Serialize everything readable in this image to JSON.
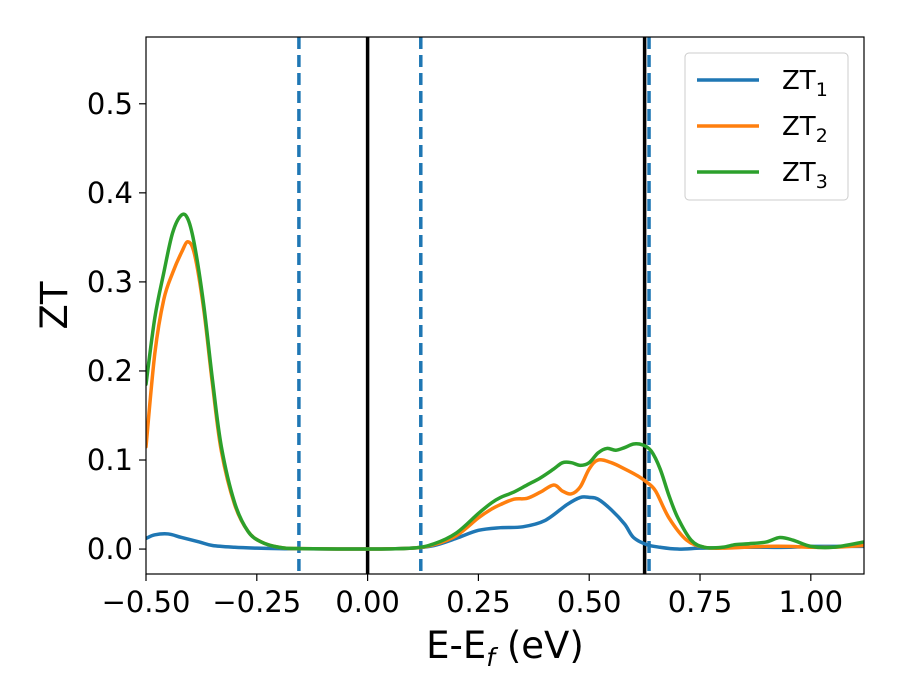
{
  "chart_data": {
    "type": "line",
    "xlabel": "E-E",
    "xlabel_sub": "f",
    "xlabel_unit": " (eV)",
    "ylabel": "ZT",
    "xlim": [
      -0.5,
      1.12
    ],
    "ylim": [
      -0.028,
      0.575
    ],
    "xticks": [
      -0.5,
      -0.25,
      0.0,
      0.25,
      0.5,
      0.75,
      1.0
    ],
    "xtick_labels": [
      "−0.50",
      "−0.25",
      "0.00",
      "0.25",
      "0.50",
      "0.75",
      "1.00"
    ],
    "yticks": [
      0.0,
      0.1,
      0.2,
      0.3,
      0.4,
      0.5
    ],
    "ytick_labels": [
      "0.0",
      "0.1",
      "0.2",
      "0.3",
      "0.4",
      "0.5"
    ],
    "grid": false,
    "legend_position": "top-right",
    "series": [
      {
        "name": "ZT",
        "sub": "1",
        "color": "#1f77b4",
        "x": [
          -0.5,
          -0.48,
          -0.45,
          -0.42,
          -0.38,
          -0.35,
          -0.3,
          -0.25,
          -0.2,
          -0.15,
          0.0,
          0.1,
          0.15,
          0.2,
          0.25,
          0.3,
          0.35,
          0.4,
          0.45,
          0.48,
          0.5,
          0.52,
          0.55,
          0.58,
          0.6,
          0.63,
          0.66,
          0.7,
          0.75,
          0.8,
          0.85,
          0.9,
          0.95,
          1.0,
          1.05,
          1.12
        ],
        "y": [
          0.012,
          0.016,
          0.017,
          0.013,
          0.008,
          0.004,
          0.002,
          0.001,
          0.0005,
          0.0003,
          0.0,
          0.001,
          0.004,
          0.012,
          0.021,
          0.024,
          0.025,
          0.032,
          0.05,
          0.058,
          0.058,
          0.056,
          0.044,
          0.028,
          0.013,
          0.005,
          0.002,
          0.0,
          0.001,
          0.0015,
          0.002,
          0.002,
          0.002,
          0.003,
          0.003,
          0.003
        ]
      },
      {
        "name": "ZT",
        "sub": "2",
        "color": "#ff7f0e",
        "x": [
          -0.5,
          -0.48,
          -0.46,
          -0.44,
          -0.42,
          -0.405,
          -0.39,
          -0.37,
          -0.35,
          -0.33,
          -0.3,
          -0.27,
          -0.24,
          -0.2,
          -0.15,
          0.0,
          0.1,
          0.15,
          0.2,
          0.25,
          0.28,
          0.3,
          0.33,
          0.36,
          0.39,
          0.42,
          0.44,
          0.46,
          0.48,
          0.5,
          0.52,
          0.55,
          0.58,
          0.61,
          0.63,
          0.65,
          0.68,
          0.72,
          0.76,
          0.8,
          0.85,
          0.9,
          0.95,
          1.0,
          1.05,
          1.12
        ],
        "y": [
          0.115,
          0.22,
          0.28,
          0.31,
          0.333,
          0.345,
          0.33,
          0.27,
          0.185,
          0.11,
          0.05,
          0.02,
          0.008,
          0.002,
          0.0005,
          0.0,
          0.001,
          0.005,
          0.015,
          0.035,
          0.045,
          0.05,
          0.056,
          0.057,
          0.064,
          0.072,
          0.065,
          0.062,
          0.07,
          0.09,
          0.1,
          0.097,
          0.09,
          0.082,
          0.075,
          0.065,
          0.035,
          0.01,
          0.002,
          0.001,
          0.002,
          0.003,
          0.003,
          0.002,
          0.002,
          0.004
        ]
      },
      {
        "name": "ZT",
        "sub": "3",
        "color": "#2ca02c",
        "x": [
          -0.5,
          -0.48,
          -0.46,
          -0.44,
          -0.42,
          -0.405,
          -0.39,
          -0.37,
          -0.35,
          -0.33,
          -0.3,
          -0.27,
          -0.24,
          -0.2,
          -0.15,
          0.0,
          0.1,
          0.15,
          0.2,
          0.25,
          0.28,
          0.3,
          0.33,
          0.36,
          0.39,
          0.42,
          0.44,
          0.46,
          0.48,
          0.5,
          0.52,
          0.54,
          0.56,
          0.58,
          0.6,
          0.62,
          0.64,
          0.66,
          0.68,
          0.7,
          0.73,
          0.76,
          0.8,
          0.83,
          0.86,
          0.9,
          0.93,
          0.96,
          1.0,
          1.05,
          1.12
        ],
        "y": [
          0.185,
          0.26,
          0.31,
          0.355,
          0.375,
          0.37,
          0.34,
          0.275,
          0.19,
          0.115,
          0.052,
          0.02,
          0.008,
          0.002,
          0.0005,
          0.0,
          0.001,
          0.006,
          0.018,
          0.04,
          0.052,
          0.058,
          0.064,
          0.072,
          0.08,
          0.09,
          0.097,
          0.097,
          0.094,
          0.097,
          0.108,
          0.113,
          0.111,
          0.114,
          0.118,
          0.117,
          0.11,
          0.09,
          0.06,
          0.035,
          0.01,
          0.002,
          0.002,
          0.005,
          0.006,
          0.008,
          0.013,
          0.01,
          0.003,
          0.002,
          0.008
        ]
      }
    ],
    "vlines": [
      {
        "x": -0.155,
        "color": "#1f77b4",
        "style": "dashed"
      },
      {
        "x": 0.0,
        "color": "#000000",
        "style": "solid"
      },
      {
        "x": 0.12,
        "color": "#1f77b4",
        "style": "dashed"
      },
      {
        "x": 0.625,
        "color": "#000000",
        "style": "solid"
      },
      {
        "x": 0.635,
        "color": "#1f77b4",
        "style": "dashed"
      }
    ]
  }
}
